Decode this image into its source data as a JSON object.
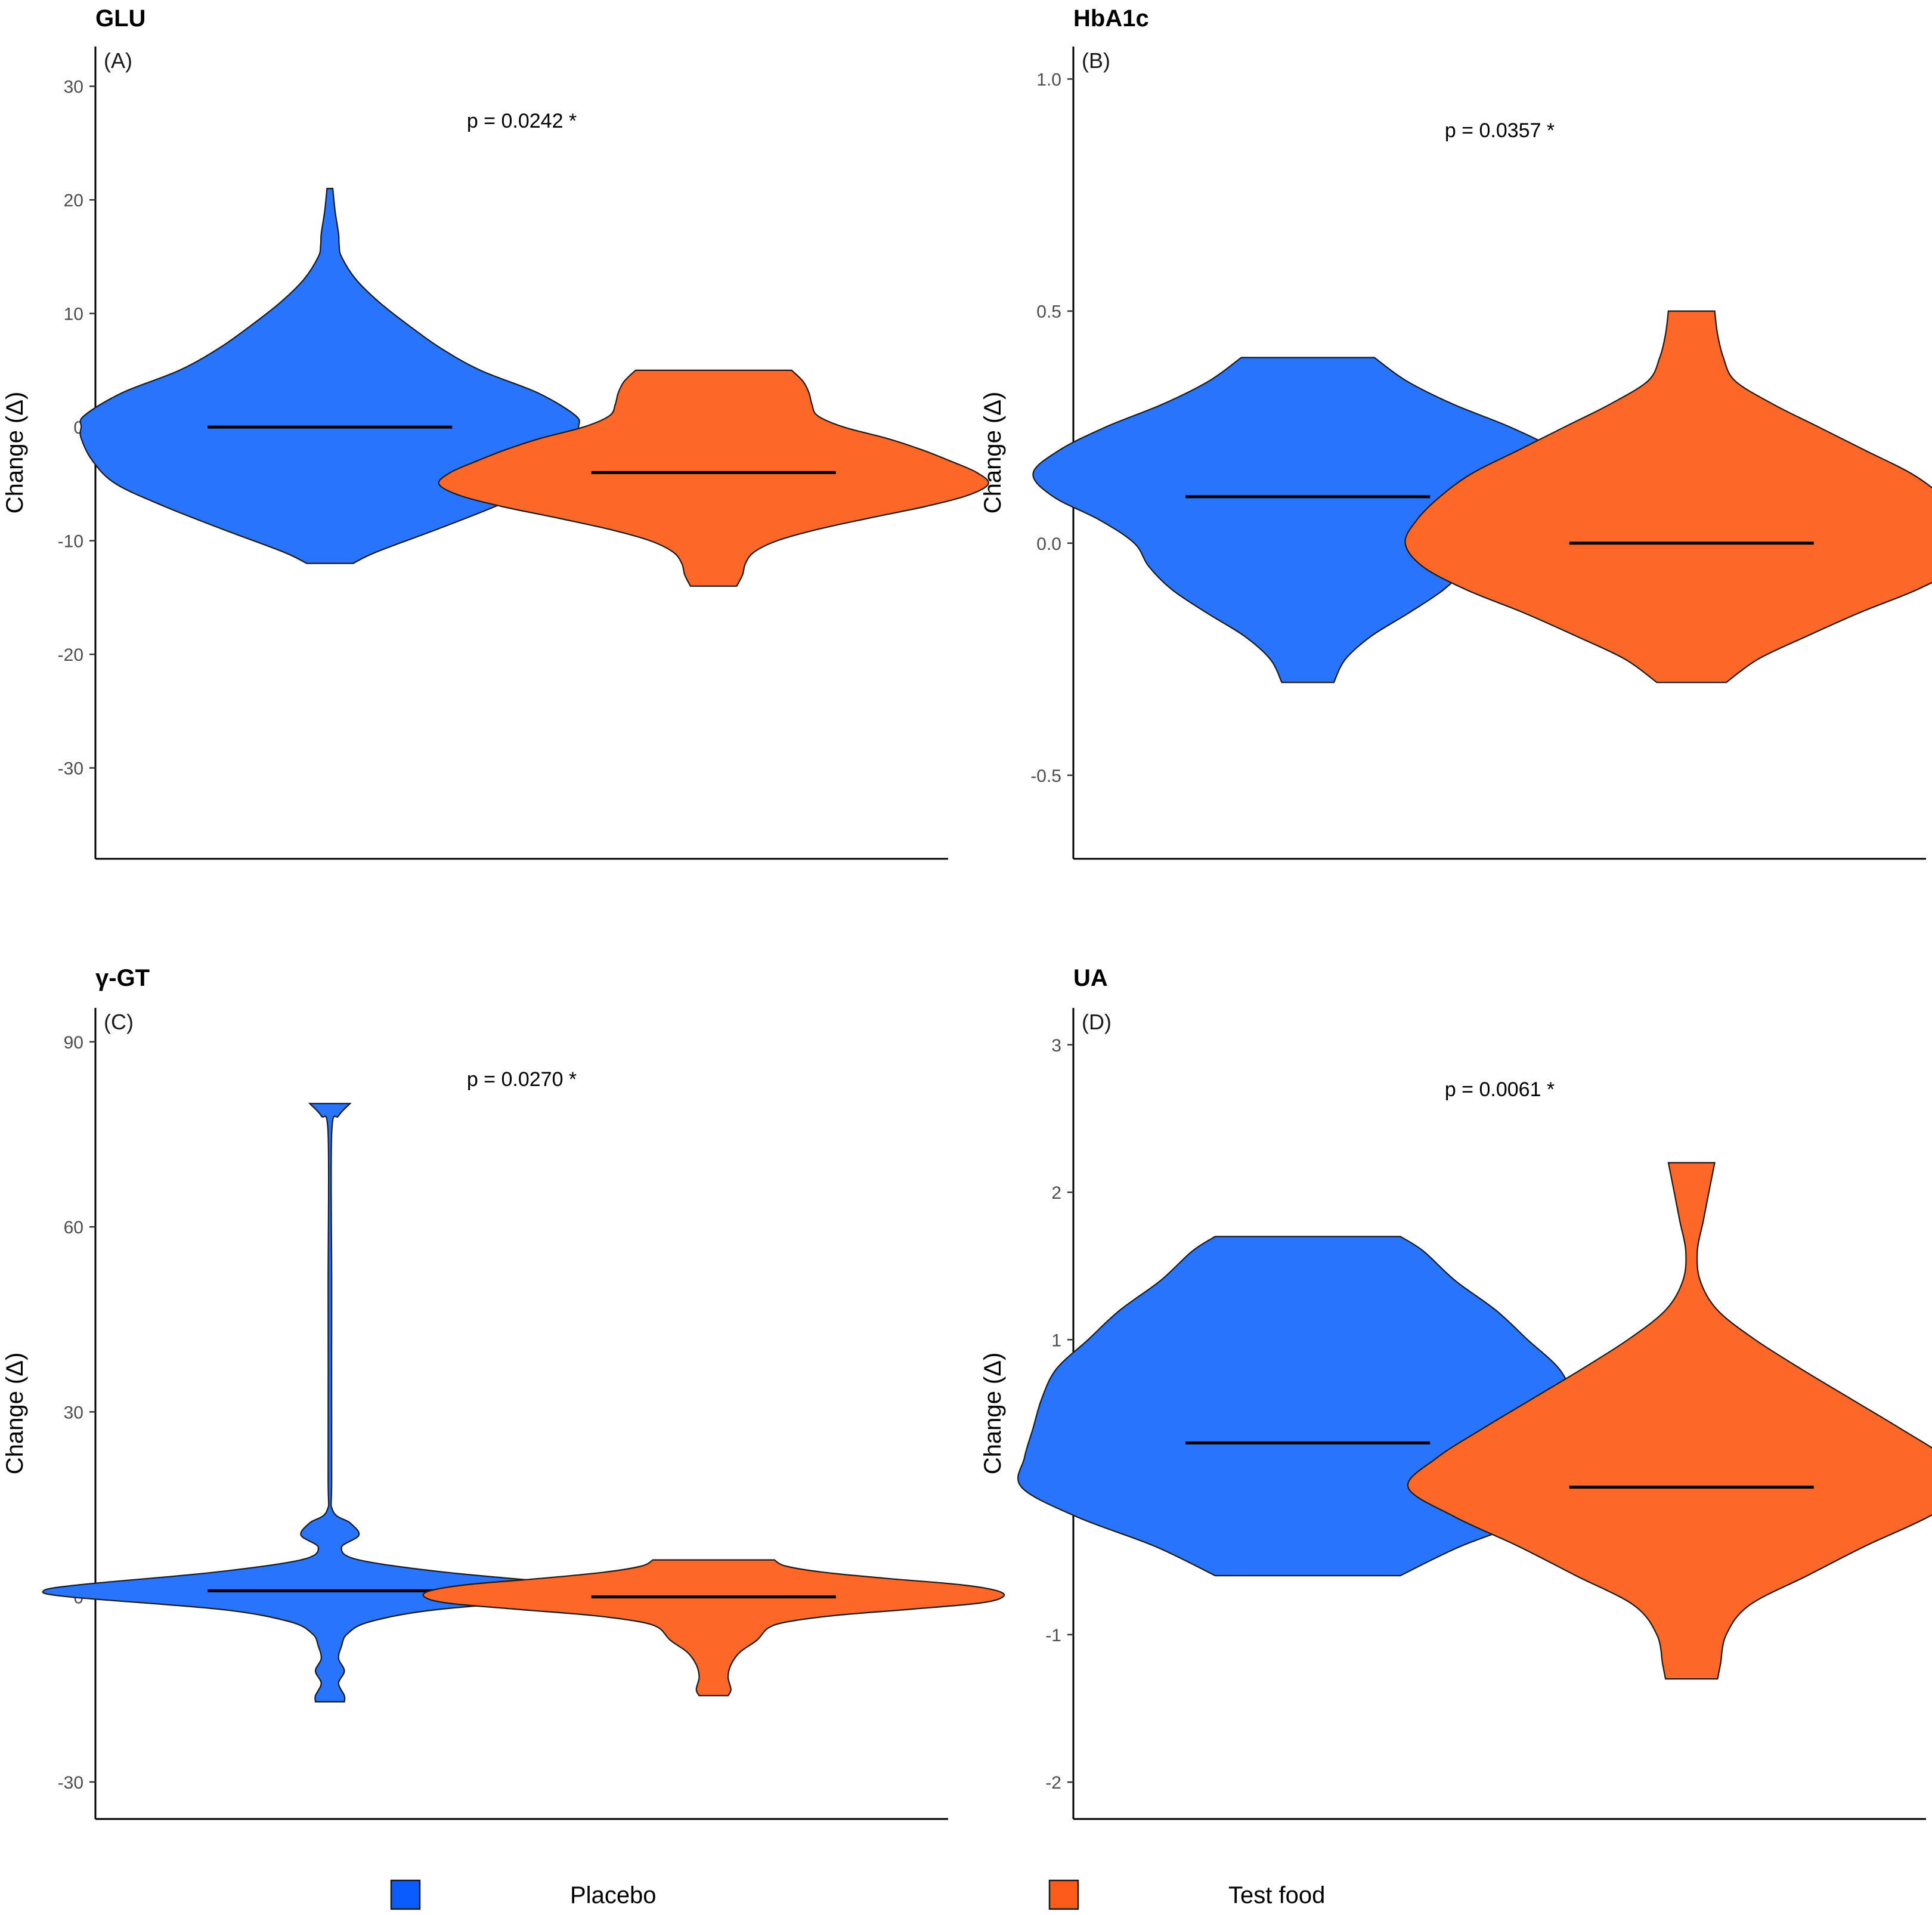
{
  "colors": {
    "placebo": "#2874fd",
    "test_food": "#fd6728"
  },
  "legend": [
    {
      "label": "Placebo",
      "color": "#0a5dfc"
    },
    {
      "label": "Test food",
      "color": "#fd5b1a"
    }
  ],
  "chart_data": [
    {
      "type": "violin",
      "title": "GLU",
      "tag": "(A)",
      "ylabel": "Change (Δ)",
      "annotation": "p = 0.0242 *",
      "annotation_y": 27,
      "ylim": [
        -38,
        33.5
      ],
      "yticks": [
        -30,
        -20,
        -10,
        0,
        10,
        20,
        30
      ],
      "ytick_labels": [
        "-30",
        "-20",
        "-10",
        "0",
        "10",
        "20",
        "30"
      ],
      "groups": [
        {
          "name": "Placebo",
          "median": 0,
          "min": -12,
          "max": 21,
          "density": [
            [
              21,
              0.01
            ],
            [
              19,
              0.018
            ],
            [
              17,
              0.03
            ],
            [
              16,
              0.032
            ],
            [
              15,
              0.04
            ],
            [
              13,
              0.09
            ],
            [
              11,
              0.17
            ],
            [
              9,
              0.27
            ],
            [
              7,
              0.38
            ],
            [
              5,
              0.52
            ],
            [
              3,
              0.72
            ],
            [
              1,
              0.85
            ],
            [
              0,
              0.86
            ],
            [
              -1,
              0.86
            ],
            [
              -3,
              0.82
            ],
            [
              -5,
              0.74
            ],
            [
              -7,
              0.57
            ],
            [
              -9,
              0.37
            ],
            [
              -11,
              0.16
            ],
            [
              -12,
              0.08
            ]
          ]
        },
        {
          "name": "Test food",
          "median": -4,
          "min": -14,
          "max": 5,
          "density": [
            [
              5,
              0.27
            ],
            [
              4,
              0.31
            ],
            [
              3,
              0.33
            ],
            [
              2,
              0.34
            ],
            [
              1,
              0.36
            ],
            [
              0,
              0.45
            ],
            [
              -1,
              0.6
            ],
            [
              -2,
              0.72
            ],
            [
              -3,
              0.82
            ],
            [
              -4,
              0.91
            ],
            [
              -5,
              0.95
            ],
            [
              -6,
              0.88
            ],
            [
              -7,
              0.73
            ],
            [
              -8,
              0.54
            ],
            [
              -9,
              0.36
            ],
            [
              -10,
              0.22
            ],
            [
              -11,
              0.14
            ],
            [
              -12,
              0.11
            ],
            [
              -13,
              0.1
            ],
            [
              -14,
              0.08
            ]
          ]
        }
      ]
    },
    {
      "type": "violin",
      "title": "HbA1c",
      "tag": "(B)",
      "ylabel": "Change (Δ)",
      "annotation": "p = 0.0357 *",
      "annotation_y": 0.89,
      "ylim": [
        -0.68,
        1.07
      ],
      "yticks": [
        -0.5,
        0.0,
        0.5,
        1.0
      ],
      "ytick_labels": [
        "-0.5",
        "0.0",
        "0.5",
        "1.0"
      ],
      "groups": [
        {
          "name": "Placebo",
          "median": 0.1,
          "min": -0.3,
          "max": 0.4,
          "density": [
            [
              0.4,
              0.23
            ],
            [
              0.35,
              0.34
            ],
            [
              0.3,
              0.5
            ],
            [
              0.25,
              0.7
            ],
            [
              0.2,
              0.86
            ],
            [
              0.15,
              0.95
            ],
            [
              0.1,
              0.88
            ],
            [
              0.05,
              0.72
            ],
            [
              0.0,
              0.6
            ],
            [
              -0.05,
              0.55
            ],
            [
              -0.1,
              0.47
            ],
            [
              -0.15,
              0.35
            ],
            [
              -0.2,
              0.22
            ],
            [
              -0.25,
              0.13
            ],
            [
              -0.3,
              0.09
            ]
          ]
        },
        {
          "name": "Test food",
          "median": 0.0,
          "min": -0.3,
          "max": 0.5,
          "density": [
            [
              0.5,
              0.08
            ],
            [
              0.45,
              0.09
            ],
            [
              0.4,
              0.11
            ],
            [
              0.35,
              0.15
            ],
            [
              0.3,
              0.28
            ],
            [
              0.25,
              0.44
            ],
            [
              0.2,
              0.6
            ],
            [
              0.15,
              0.76
            ],
            [
              0.1,
              0.87
            ],
            [
              0.05,
              0.95
            ],
            [
              0.0,
              0.99
            ],
            [
              -0.05,
              0.93
            ],
            [
              -0.1,
              0.78
            ],
            [
              -0.15,
              0.58
            ],
            [
              -0.2,
              0.4
            ],
            [
              -0.25,
              0.23
            ],
            [
              -0.3,
              0.12
            ]
          ]
        }
      ]
    },
    {
      "type": "violin",
      "title": "γ-GT",
      "tag": "(C)",
      "ylabel": "Change (Δ)",
      "annotation": "p = 0.0270 *",
      "annotation_y": 84,
      "ylim": [
        -36,
        95.5
      ],
      "yticks": [
        -30,
        0,
        30,
        60,
        90
      ],
      "ytick_labels": [
        "-30",
        "0",
        "30",
        "60",
        "90"
      ],
      "groups": [
        {
          "name": "Placebo",
          "median": 1,
          "min": -17,
          "max": 80,
          "density": [
            [
              80,
              0.07
            ],
            [
              78,
              0.03
            ],
            [
              75,
              0.006
            ],
            [
              50,
              0.006
            ],
            [
              20,
              0.006
            ],
            [
              14,
              0.01
            ],
            [
              12,
              0.07
            ],
            [
              10,
              0.1
            ],
            [
              8,
              0.04
            ],
            [
              6,
              0.1
            ],
            [
              4,
              0.4
            ],
            [
              2,
              0.86
            ],
            [
              1,
              0.99
            ],
            [
              0,
              0.9
            ],
            [
              -2,
              0.38
            ],
            [
              -4,
              0.14
            ],
            [
              -6,
              0.06
            ],
            [
              -8,
              0.04
            ],
            [
              -10,
              0.03
            ],
            [
              -12,
              0.05
            ],
            [
              -14,
              0.03
            ],
            [
              -16,
              0.05
            ],
            [
              -17,
              0.05
            ]
          ]
        },
        {
          "name": "Test food",
          "median": 0,
          "min": -16,
          "max": 6,
          "density": [
            [
              6,
              0.21
            ],
            [
              5,
              0.25
            ],
            [
              4,
              0.38
            ],
            [
              3,
              0.6
            ],
            [
              2,
              0.85
            ],
            [
              1,
              0.98
            ],
            [
              0,
              1.0
            ],
            [
              -1,
              0.92
            ],
            [
              -2,
              0.68
            ],
            [
              -3,
              0.42
            ],
            [
              -4,
              0.26
            ],
            [
              -5,
              0.19
            ],
            [
              -7,
              0.15
            ],
            [
              -9,
              0.09
            ],
            [
              -11,
              0.06
            ],
            [
              -13,
              0.05
            ],
            [
              -15,
              0.06
            ],
            [
              -16,
              0.05
            ]
          ]
        }
      ]
    },
    {
      "type": "violin",
      "title": "UA",
      "tag": "(D)",
      "ylabel": "Change (Δ)",
      "annotation": "p = 0.0061 *",
      "annotation_y": 2.7,
      "ylim": [
        -2.25,
        3.25
      ],
      "yticks": [
        -2,
        -1,
        0,
        1,
        2,
        3
      ],
      "ytick_labels": [
        "-2",
        "-1",
        "0",
        "1",
        "2",
        "3"
      ],
      "groups": [
        {
          "name": "Placebo",
          "median": 0.3,
          "min": -0.6,
          "max": 1.7,
          "density": [
            [
              1.7,
              0.32
            ],
            [
              1.6,
              0.4
            ],
            [
              1.4,
              0.51
            ],
            [
              1.2,
              0.65
            ],
            [
              1.0,
              0.76
            ],
            [
              0.8,
              0.87
            ],
            [
              0.6,
              0.92
            ],
            [
              0.4,
              0.95
            ],
            [
              0.2,
              0.98
            ],
            [
              0.0,
              0.99
            ],
            [
              -0.2,
              0.8
            ],
            [
              -0.4,
              0.53
            ],
            [
              -0.6,
              0.32
            ]
          ]
        },
        {
          "name": "Test food",
          "median": 0.0,
          "min": -1.3,
          "max": 2.2,
          "density": [
            [
              2.2,
              0.08
            ],
            [
              2.0,
              0.06
            ],
            [
              1.8,
              0.04
            ],
            [
              1.6,
              0.02
            ],
            [
              1.4,
              0.03
            ],
            [
              1.2,
              0.09
            ],
            [
              1.0,
              0.22
            ],
            [
              0.8,
              0.38
            ],
            [
              0.6,
              0.55
            ],
            [
              0.4,
              0.72
            ],
            [
              0.2,
              0.88
            ],
            [
              0.0,
              0.98
            ],
            [
              -0.2,
              0.82
            ],
            [
              -0.4,
              0.6
            ],
            [
              -0.6,
              0.4
            ],
            [
              -0.8,
              0.2
            ],
            [
              -1.0,
              0.12
            ],
            [
              -1.2,
              0.1
            ],
            [
              -1.3,
              0.09
            ]
          ]
        }
      ]
    }
  ]
}
